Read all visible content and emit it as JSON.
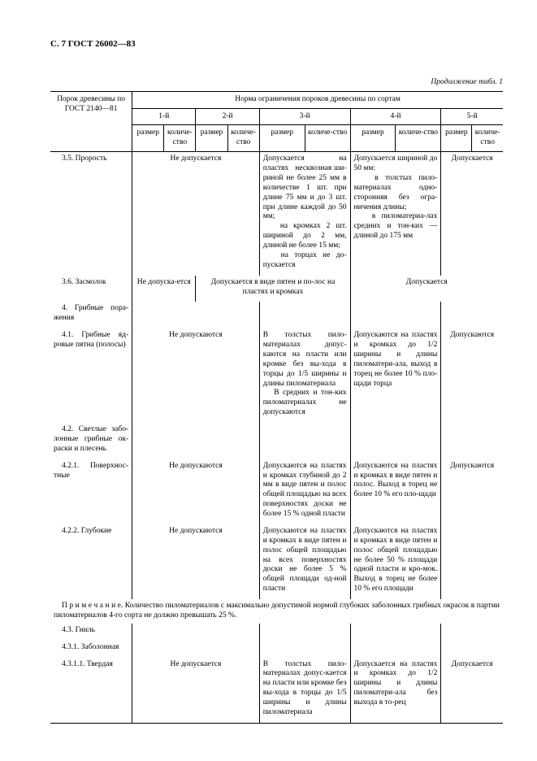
{
  "page_header": "С. 7  ГОСТ 26002—83",
  "continuation": "Продолжение табл. 1",
  "head": {
    "col1": "Порок древесины по ГОСТ 2140—81",
    "spanTitle": "Норма ограничения пороков древесины по сортам",
    "grades": [
      "1-й",
      "2-й",
      "3-й",
      "4-й",
      "5-й"
    ],
    "sub": [
      "размер",
      "количе-ство"
    ]
  },
  "rows": [
    {
      "name": "3.5.  Прорость",
      "c12": "Не допускается",
      "c3": "Допускается на пластях   несквозная ши-риной не более 25 мм в количестве 1 шт. при длине 75 мм и до 3 шт. при длине каждой до 50 мм;\n   на кромках 2 шт. шириной до 2 мм, длиной не более 15 мм;\n   на торцах не до-пускается",
      "c4": "Допускается шириной до 50 мм:\n   в толстых пило-материалах одно-сторонняя без огра-ничения длины;\n   в пиломатериа-лах средних и тон-ких — длиной до 175 мм",
      "c5": "Допускается"
    },
    {
      "name": "3.6.  Засмолок",
      "c1": "Не допуска-ется",
      "c23": "Допускается в виде пятен и по-лос на пластях и кромках",
      "c45": "Допускается"
    },
    {
      "name": "4.  Грибные  пора-жения"
    },
    {
      "name": "4.1.  Грибные  яд-ровые пятна (полосы)",
      "c12": "Не допускаются",
      "c3": "В толстых пило-материалах допус-каются на пласти или кромке без вы-хода в торцы до 1/5 ширины и длины пиломатериала\n   В средних и тон-ких пиломатериалах не допускаются",
      "c4": "Допускаются на пластях и кромках до 1/2 ширины и длины пиломатери-ала, выход в торец не более 10 % пло-щади торца",
      "c5": "Допускаются"
    },
    {
      "name": "4.2.  Светлые  забо-лонные  грибные  ок-раски и плесень"
    },
    {
      "name": "4.2.1.  Поверхнос-тные",
      "c12": "Не допускаются",
      "c3": "Допускаются на пластях и кромках глубиной до 2 мм в виде пятен и полос общей площадью на всех поверхностях доски не более 15 % одной пласти",
      "c4": "Допускаются на пластях и кромках в виде пятен и полос. Выход в торец не более 10 % его пло-щади",
      "c5": "Допускаются"
    },
    {
      "name": "4.2.2.  Глубокие",
      "c12": "Не допускаются",
      "c3": "Допускаются на пластях и кромках в виде пятен и полос общей площадью на всех поверхностях доски не более 5 % общей площади од-ной пласти",
      "c4": "Допускаются на пластях и кромках в виде пятен и полос общей площадью не более 50 % площади одной пласти и кро-мок. Выход в торец не более 10 % его площади",
      "c5": ""
    },
    {
      "note": "П р и м е ч а н и е.  Количество пиломатериалов с максимально допустимой нормой глубоких заболонных грибных окрасок в партии пиломатериалов 4-го сорта не должно превышать 25 %."
    },
    {
      "name": "4.3.  Гниль"
    },
    {
      "name": "4.3.1.  Заболонная"
    },
    {
      "name": "4.3.1.1.  Твердая",
      "c12": "Не допускается",
      "c3": "В толстых пило-материалах допус-кается на пласти или кромке без вы-хода в торцы до 1/5 ширины и длины пиломатериала",
      "c4": "Допускается на пластях и кромках до 1/2 ширины и длины пиломатери-ала без выхода в то-рец",
      "c5": "Допускается"
    }
  ]
}
